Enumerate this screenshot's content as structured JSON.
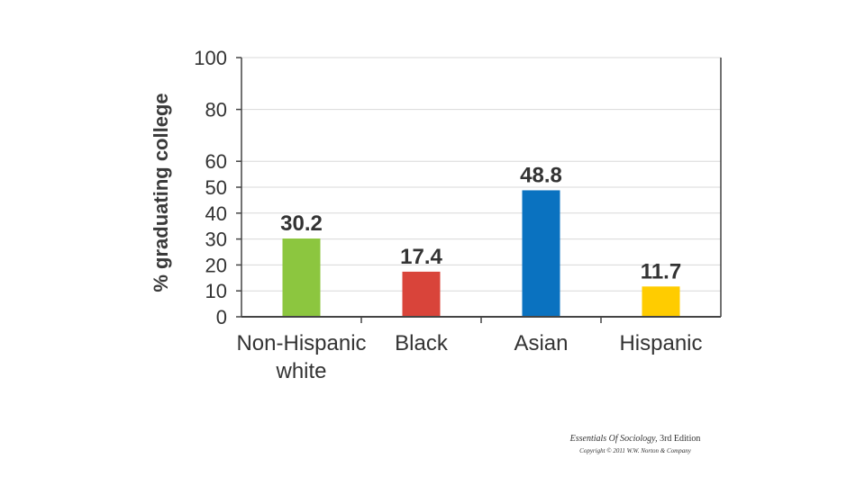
{
  "chart_data": {
    "type": "bar",
    "title": "",
    "xlabel": "",
    "ylabel": "% graduating college",
    "ylim": [
      0,
      100
    ],
    "yticks": [
      0,
      10,
      20,
      30,
      40,
      50,
      60,
      80,
      100
    ],
    "grid": true,
    "categories": [
      {
        "lines": [
          "Non-Hispanic",
          "white"
        ]
      },
      {
        "lines": [
          "Black"
        ]
      },
      {
        "lines": [
          "Asian"
        ]
      },
      {
        "lines": [
          "Hispanic"
        ]
      }
    ],
    "values": [
      30.2,
      17.4,
      48.8,
      11.7
    ],
    "value_labels": [
      "30.2",
      "17.4",
      "48.8",
      "11.7"
    ],
    "colors": [
      "#8cc63f",
      "#d9443a",
      "#0a72c0",
      "#ffcc00"
    ]
  },
  "caption": {
    "book_title": "Essentials Of Sociology,",
    "edition": " 3rd Edition",
    "copyright": "Copyright © 2011 W.W. Norton & Company"
  }
}
